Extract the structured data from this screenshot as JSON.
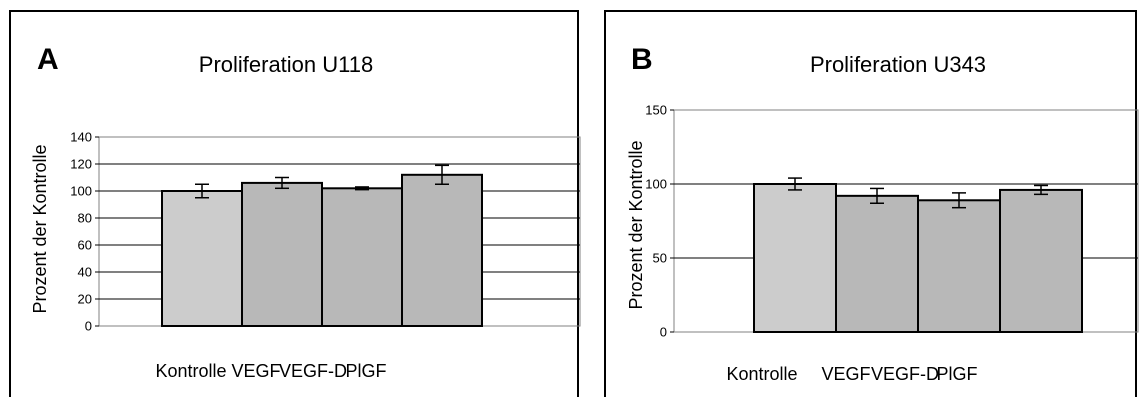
{
  "chart_data": [
    {
      "type": "bar",
      "panel_label": "A",
      "title": "Proliferation U118",
      "ylabel": "Prozent der Kontrolle",
      "xlabel": "",
      "categories": [
        "Kontrolle",
        "VEGF",
        "VEGF-D",
        "PlGF"
      ],
      "values": [
        100,
        106,
        102,
        112
      ],
      "errors": [
        5,
        4,
        1,
        7
      ],
      "ylim": [
        0,
        140
      ],
      "yticks": [
        "0",
        "20",
        "40",
        "60",
        "80",
        "100",
        "120",
        "140"
      ],
      "grid": true,
      "colors": [
        "#cccccc",
        "#b8b8b8",
        "#b8b8b8",
        "#b8b8b8"
      ]
    },
    {
      "type": "bar",
      "panel_label": "B",
      "title": "Proliferation U343",
      "ylabel": "Prozent der Kontrolle",
      "xlabel": "",
      "categories": [
        "Kontrolle",
        "VEGF",
        "VEGF-D",
        "PlGF"
      ],
      "values": [
        100,
        92,
        89,
        96
      ],
      "errors": [
        4,
        5,
        5,
        3
      ],
      "ylim": [
        0,
        150
      ],
      "yticks": [
        "0",
        "50",
        "100",
        "150"
      ],
      "grid": true,
      "colors": [
        "#cccccc",
        "#b8b8b8",
        "#b8b8b8",
        "#b8b8b8"
      ]
    }
  ]
}
